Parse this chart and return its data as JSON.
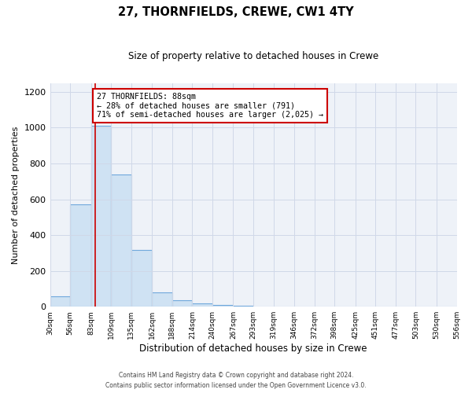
{
  "title": "27, THORNFIELDS, CREWE, CW1 4TY",
  "subtitle": "Size of property relative to detached houses in Crewe",
  "xlabel": "Distribution of detached houses by size in Crewe",
  "ylabel": "Number of detached properties",
  "bar_color": "#cfe2f3",
  "bar_edge_color": "#6fa8dc",
  "bin_edges": [
    30,
    56,
    83,
    109,
    135,
    162,
    188,
    214,
    240,
    267,
    293,
    319,
    346,
    372,
    398,
    425,
    451,
    477,
    503,
    530,
    556
  ],
  "bar_heights": [
    60,
    570,
    1010,
    740,
    315,
    80,
    38,
    20,
    10,
    5,
    0,
    0,
    0,
    0,
    0,
    0,
    0,
    0,
    0,
    0
  ],
  "tick_labels": [
    "30sqm",
    "56sqm",
    "83sqm",
    "109sqm",
    "135sqm",
    "162sqm",
    "188sqm",
    "214sqm",
    "240sqm",
    "267sqm",
    "293sqm",
    "319sqm",
    "346sqm",
    "372sqm",
    "398sqm",
    "425sqm",
    "451sqm",
    "477sqm",
    "503sqm",
    "530sqm",
    "556sqm"
  ],
  "ylim": [
    0,
    1250
  ],
  "yticks": [
    0,
    200,
    400,
    600,
    800,
    1000,
    1200
  ],
  "vline_x": 88,
  "vline_color": "#cc0000",
  "annotation_title": "27 THORNFIELDS: 88sqm",
  "annotation_line1": "← 28% of detached houses are smaller (791)",
  "annotation_line2": "71% of semi-detached houses are larger (2,025) →",
  "annotation_box_color": "#ffffff",
  "annotation_box_edge": "#cc0000",
  "footer1": "Contains HM Land Registry data © Crown copyright and database right 2024.",
  "footer2": "Contains public sector information licensed under the Open Government Licence v3.0.",
  "background_color": "#ffffff",
  "grid_color": "#d0d8e8"
}
